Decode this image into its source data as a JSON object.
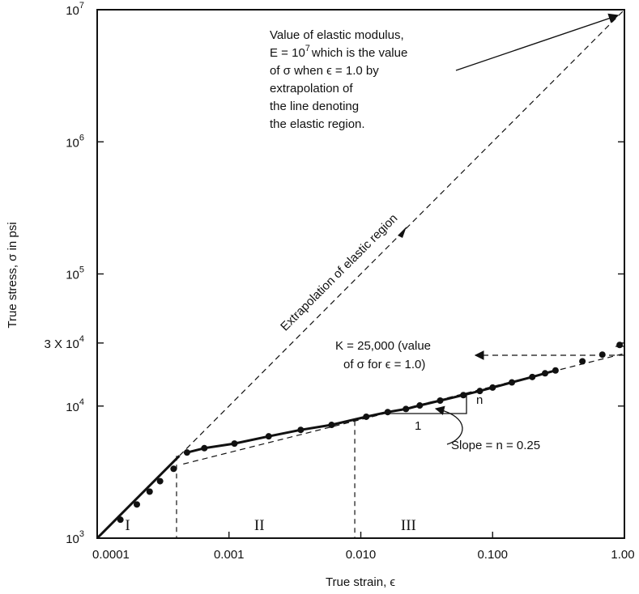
{
  "chart_data": {
    "type": "scatter",
    "xlabel": "True strain, ϵ",
    "ylabel": "True stress, σ in psi",
    "x_scale": "log",
    "y_scale": "log",
    "xlim": [
      0.0001,
      1.0
    ],
    "ylim": [
      1000,
      10000000
    ],
    "x_tick_labels": [
      "0.0001",
      "0.001",
      "0.010",
      "0.100",
      "1.00"
    ],
    "y_tick_labels": [
      {
        "value": 1000,
        "base": "10",
        "exp": "3"
      },
      {
        "value": 10000,
        "base": "10",
        "exp": "4"
      },
      {
        "value": 30000,
        "text": "3 X 10",
        "exp": "4"
      },
      {
        "value": 100000,
        "base": "10",
        "exp": "5"
      },
      {
        "value": 1000000,
        "base": "10",
        "exp": "6"
      },
      {
        "value": 10000000,
        "base": "10",
        "exp": "7"
      }
    ],
    "series": [
      {
        "points": [
          [
            0.00015,
            1380
          ],
          [
            0.0002,
            1800
          ],
          [
            0.00025,
            2250
          ],
          [
            0.0003,
            2700
          ],
          [
            0.00038,
            3350
          ],
          [
            0.00048,
            4450
          ],
          [
            0.00065,
            4800
          ],
          [
            0.0011,
            5200
          ],
          [
            0.002,
            5900
          ],
          [
            0.0035,
            6600
          ],
          [
            0.006,
            7200
          ],
          [
            0.011,
            8300
          ],
          [
            0.016,
            9000
          ],
          [
            0.022,
            9500
          ],
          [
            0.028,
            10100
          ],
          [
            0.04,
            11000
          ],
          [
            0.06,
            12100
          ],
          [
            0.08,
            13000
          ],
          [
            0.1,
            13800
          ],
          [
            0.14,
            15100
          ],
          [
            0.2,
            16600
          ],
          [
            0.25,
            17700
          ],
          [
            0.3,
            18600
          ],
          [
            0.48,
            21800
          ],
          [
            0.68,
            24500
          ],
          [
            0.92,
            29000
          ]
        ]
      }
    ],
    "elastic_extrapolation": [
      [
        0.0001,
        1000
      ],
      [
        1.0,
        10000000
      ]
    ],
    "power_law_fit": {
      "K": 25000,
      "n": 0.25,
      "from": 0.00045
    },
    "region_boundaries": [
      0.0004,
      0.009
    ],
    "region_labels": [
      {
        "label": "I",
        "x": 0.00017
      },
      {
        "label": "II",
        "x": 0.0017
      },
      {
        "label": "III",
        "x": 0.023
      }
    ],
    "annotations": {
      "elastic_modulus": [
        "Value of elastic modulus,",
        "E = 10",
        "7",
        "which is the value",
        "of σ when ϵ = 1.0 by",
        "extrapolation of",
        "the line denoting",
        "the elastic region."
      ],
      "extrapolation_label": "Extrapolation of elastic region",
      "k_value": [
        "K = 25,000 (value",
        "of σ for ϵ = 1.0)"
      ],
      "slope": "Slope = n = 0.25",
      "slope_run": "1",
      "slope_rise": "n"
    }
  }
}
